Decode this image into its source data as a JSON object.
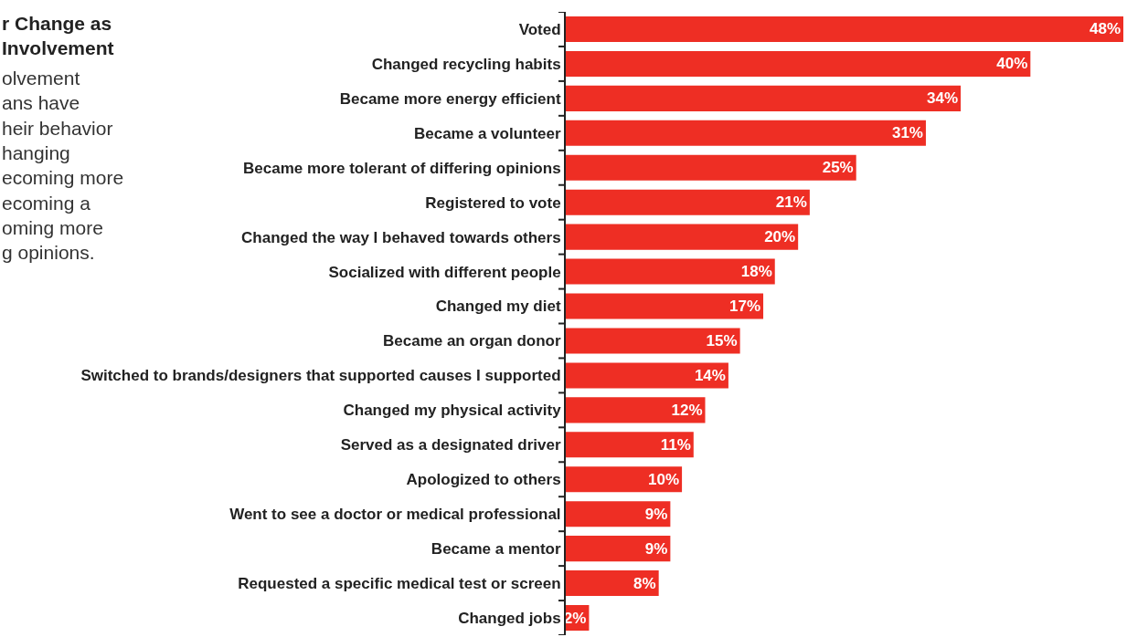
{
  "chart_data": {
    "type": "bar",
    "orientation": "horizontal",
    "title": "r Change as\nInvolvement",
    "subtitle": "olvement\nans have\nheir behavior\nhanging\necoming more\necoming a\noming more\ng opinions.",
    "categories": [
      "Voted",
      "Changed recycling habits",
      "Became more energy efficient",
      "Became a volunteer",
      "Became more tolerant of differing opinions",
      "Registered to vote",
      "Changed the way I behaved towards others",
      "Socialized with different people",
      "Changed my diet",
      "Became an organ donor",
      "Switched to brands/designers that supported causes I supported",
      "Changed my physical activity",
      "Served as a designated driver",
      "Apologized to others",
      "Went to see a doctor or medical professional",
      "Became a mentor",
      "Requested a specific medical test or screen",
      "Changed jobs"
    ],
    "values": [
      48,
      40,
      34,
      31,
      25,
      21,
      20,
      18,
      17,
      15,
      14,
      12,
      11,
      10,
      9,
      9,
      8,
      2
    ],
    "value_labels": [
      "48%",
      "40%",
      "34%",
      "31%",
      "25%",
      "21%",
      "20%",
      "18%",
      "17%",
      "15%",
      "14%",
      "12%",
      "11%",
      "10%",
      "9%",
      "9%",
      "8%",
      "2%"
    ],
    "color": "#ee2e24",
    "xlim": [
      0,
      48
    ],
    "legend": false
  }
}
